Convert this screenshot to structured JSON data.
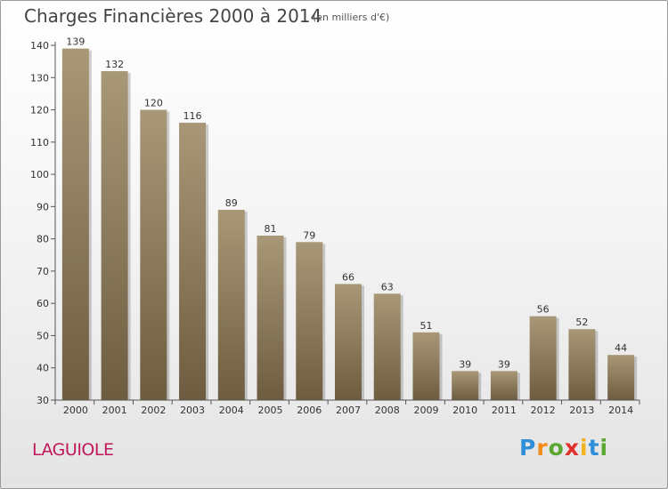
{
  "title": "Charges Financières 2000 à 2014",
  "subtitle": "(en milliers d'€)",
  "place": "LAGUIOLE",
  "logo": {
    "letters": [
      "P",
      "r",
      "o",
      "x",
      "i",
      "t",
      "i"
    ],
    "colors": [
      "#2f8fd8",
      "#f28c1c",
      "#5aa832",
      "#e0302b",
      "#f2b31c",
      "#2f8fd8",
      "#5aa832"
    ]
  },
  "colors": {
    "bar_top": "#a89877",
    "bar_bottom": "#6e5c40",
    "place_text": "#c2185b"
  },
  "chart_data": {
    "type": "bar",
    "title": "Charges Financières 2000 à 2014",
    "subtitle": "(en milliers d'€)",
    "xlabel": "",
    "ylabel": "",
    "categories": [
      "2000",
      "2001",
      "2002",
      "2003",
      "2004",
      "2005",
      "2006",
      "2007",
      "2008",
      "2009",
      "2010",
      "2011",
      "2012",
      "2013",
      "2014"
    ],
    "values": [
      139,
      132,
      120,
      116,
      89,
      81,
      79,
      66,
      63,
      51,
      39,
      39,
      56,
      52,
      44
    ],
    "data_labels": [
      "139",
      "132",
      "120",
      "116",
      "89",
      "81",
      "79",
      "66",
      "63",
      "51",
      "39",
      "39",
      "56",
      "52",
      "44"
    ],
    "ylim": [
      30,
      140
    ],
    "yticks": [
      30,
      40,
      50,
      60,
      70,
      80,
      90,
      100,
      110,
      120,
      130,
      140
    ],
    "ytick_labels": [
      "30",
      "40",
      "50",
      "60",
      "70",
      "80",
      "90",
      "100",
      "110",
      "120",
      "130",
      "140"
    ],
    "grid": false,
    "legend": "none"
  }
}
